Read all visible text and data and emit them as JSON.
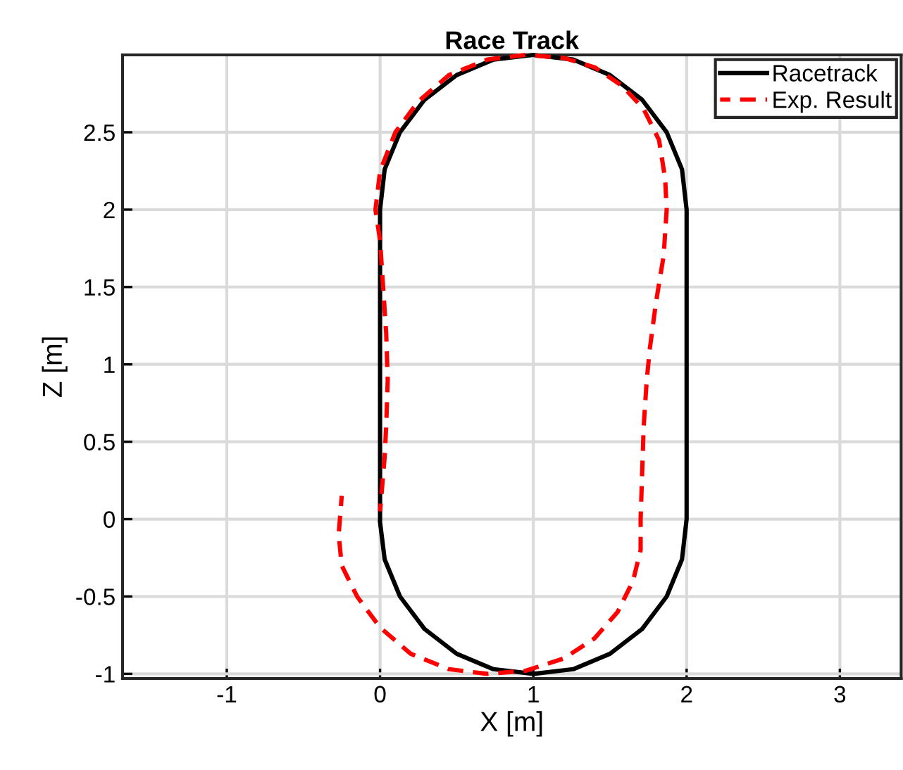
{
  "chart_data": {
    "type": "line",
    "title": "Race Track",
    "xlabel": "X [m]",
    "ylabel": "Z [m]",
    "xlim": [
      -1.68,
      3.4
    ],
    "ylim": [
      -1.03,
      3
    ],
    "xticks": [
      -1,
      0,
      1,
      2,
      3
    ],
    "yticks": [
      -1,
      -0.5,
      0,
      0.5,
      1,
      1.5,
      2,
      2.5
    ],
    "grid": true,
    "legend": "top right",
    "series": [
      {
        "name": "Racetrack",
        "color": "#000000",
        "line_style": "solid",
        "x": [
          0,
          0,
          0.03,
          0.13,
          0.29,
          0.5,
          0.74,
          1,
          1.26,
          1.5,
          1.71,
          1.87,
          1.97,
          2,
          2,
          1.97,
          1.87,
          1.71,
          1.5,
          1.26,
          1,
          0.74,
          0.5,
          0.29,
          0.13,
          0.03,
          0.01,
          0
        ],
        "values": [
          0,
          2,
          2.26,
          2.5,
          2.71,
          2.87,
          2.97,
          3,
          2.97,
          2.87,
          2.71,
          2.5,
          2.26,
          2,
          0,
          -0.26,
          -0.5,
          -0.71,
          -0.87,
          -0.97,
          -1,
          -0.97,
          -0.87,
          -0.71,
          -0.5,
          -0.26,
          -0.1,
          -0.02
        ]
      },
      {
        "name": "Exp. Result",
        "color": "#ff0000",
        "line_style": "dashed",
        "x": [
          -0.25,
          -0.27,
          -0.25,
          -0.15,
          0.0,
          0.2,
          0.45,
          0.7,
          0.95,
          1.2,
          1.4,
          1.55,
          1.65,
          1.7,
          1.7,
          1.71,
          1.72,
          1.74,
          1.76,
          1.8,
          1.85,
          1.87,
          1.86,
          1.82,
          1.72,
          1.58,
          1.4,
          1.2,
          0.95,
          0.7,
          0.45,
          0.25,
          0.1,
          0.0,
          -0.03,
          0.0,
          0.02,
          0.04,
          0.05,
          0.04,
          0.03,
          0.0
        ],
        "values": [
          0.15,
          -0.1,
          -0.3,
          -0.5,
          -0.7,
          -0.87,
          -0.97,
          -1.0,
          -0.98,
          -0.9,
          -0.77,
          -0.6,
          -0.4,
          -0.2,
          0.0,
          0.3,
          0.6,
          0.9,
          1.1,
          1.4,
          1.7,
          2.0,
          2.2,
          2.45,
          2.65,
          2.8,
          2.92,
          2.98,
          3.0,
          2.97,
          2.87,
          2.7,
          2.5,
          2.25,
          2.0,
          1.8,
          1.5,
          1.2,
          0.9,
          0.6,
          0.4,
          0.05
        ]
      }
    ]
  }
}
